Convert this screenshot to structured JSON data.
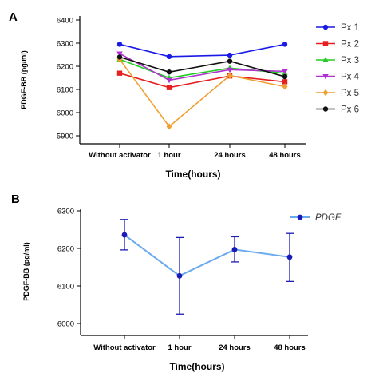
{
  "chart_data": [
    {
      "type": "line",
      "panel": "A",
      "categories": [
        "Without activator",
        "1 hour",
        "24 hours",
        "48 hours"
      ],
      "ylabel": "PDGF-BB (pg/ml)",
      "xlabel": "Time(hours)",
      "ylim": [
        5880,
        6400
      ],
      "yticks": [
        5900,
        6000,
        6100,
        6200,
        6300,
        6400
      ],
      "legend_position": "right",
      "series": [
        {
          "name": "Px 1",
          "color": "#1a1ae6",
          "marker": "circle",
          "values": [
            6295,
            6242,
            6248,
            6295
          ]
        },
        {
          "name": "Px 2",
          "color": "#e62020",
          "marker": "square",
          "values": [
            6170,
            6108,
            6158,
            6133
          ]
        },
        {
          "name": "Px 3",
          "color": "#22cc22",
          "marker": "triangle-up",
          "values": [
            6230,
            6150,
            6192,
            6170
          ]
        },
        {
          "name": "Px 4",
          "color": "#b030d0",
          "marker": "triangle-down",
          "values": [
            6255,
            6140,
            6185,
            6178
          ]
        },
        {
          "name": "Px 5",
          "color": "#f0a030",
          "marker": "diamond",
          "values": [
            6230,
            5940,
            6160,
            6112
          ]
        },
        {
          "name": "Px 6",
          "color": "#111111",
          "marker": "circle",
          "values": [
            6240,
            6175,
            6222,
            6155
          ]
        }
      ]
    },
    {
      "type": "line",
      "panel": "B",
      "categories": [
        "Without activator",
        "1 hour",
        "24 hours",
        "48 hours"
      ],
      "ylabel": "PDGF-BB (pg/ml)",
      "xlabel": "Time(hours)",
      "ylim": [
        6000,
        6300
      ],
      "yticks": [
        6000,
        6100,
        6200,
        6300
      ],
      "legend_position": "top-right",
      "series": [
        {
          "name": "PDGF",
          "line_color": "#6aaaee",
          "marker_color": "#1a1ab8",
          "values": [
            6236,
            6127,
            6197,
            6177
          ],
          "error_low": [
            6196,
            6025,
            6164,
            6112
          ],
          "error_high": [
            6277,
            6229,
            6231,
            6240
          ]
        }
      ]
    }
  ]
}
